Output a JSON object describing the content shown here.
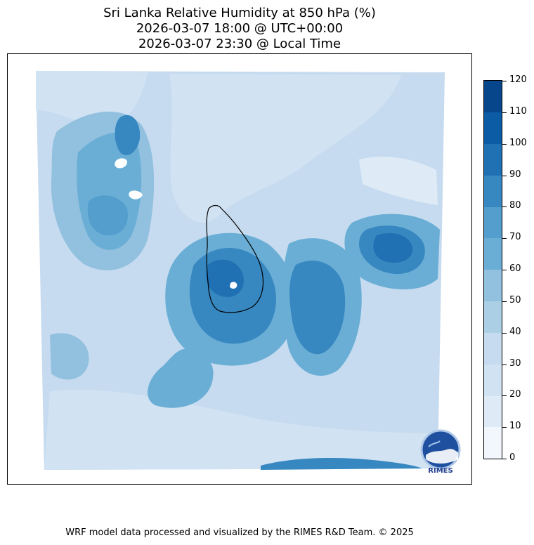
{
  "title": {
    "line1": "Sri Lanka Relative Humidity at 850 hPa (%)",
    "line2": "2026-03-07 18:00 @ UTC+00:00",
    "line3": "2026-03-07 23:30 @ Local Time"
  },
  "colorbar": {
    "ticks": [
      "0",
      "10",
      "20",
      "30",
      "40",
      "50",
      "60",
      "70",
      "80",
      "90",
      "100",
      "110",
      "120"
    ],
    "colors": [
      "#f2f7fd",
      "#deebf7",
      "#d1e2f3",
      "#c6dbef",
      "#abcfe5",
      "#92c0df",
      "#6aaed6",
      "#539ecd",
      "#3787c0",
      "#2070b4",
      "#0c5ca5",
      "#08468b"
    ]
  },
  "logo": {
    "text": "RIMES"
  },
  "footer": "WRF model data processed and visualized by the RIMES R&D Team. © 2025"
}
